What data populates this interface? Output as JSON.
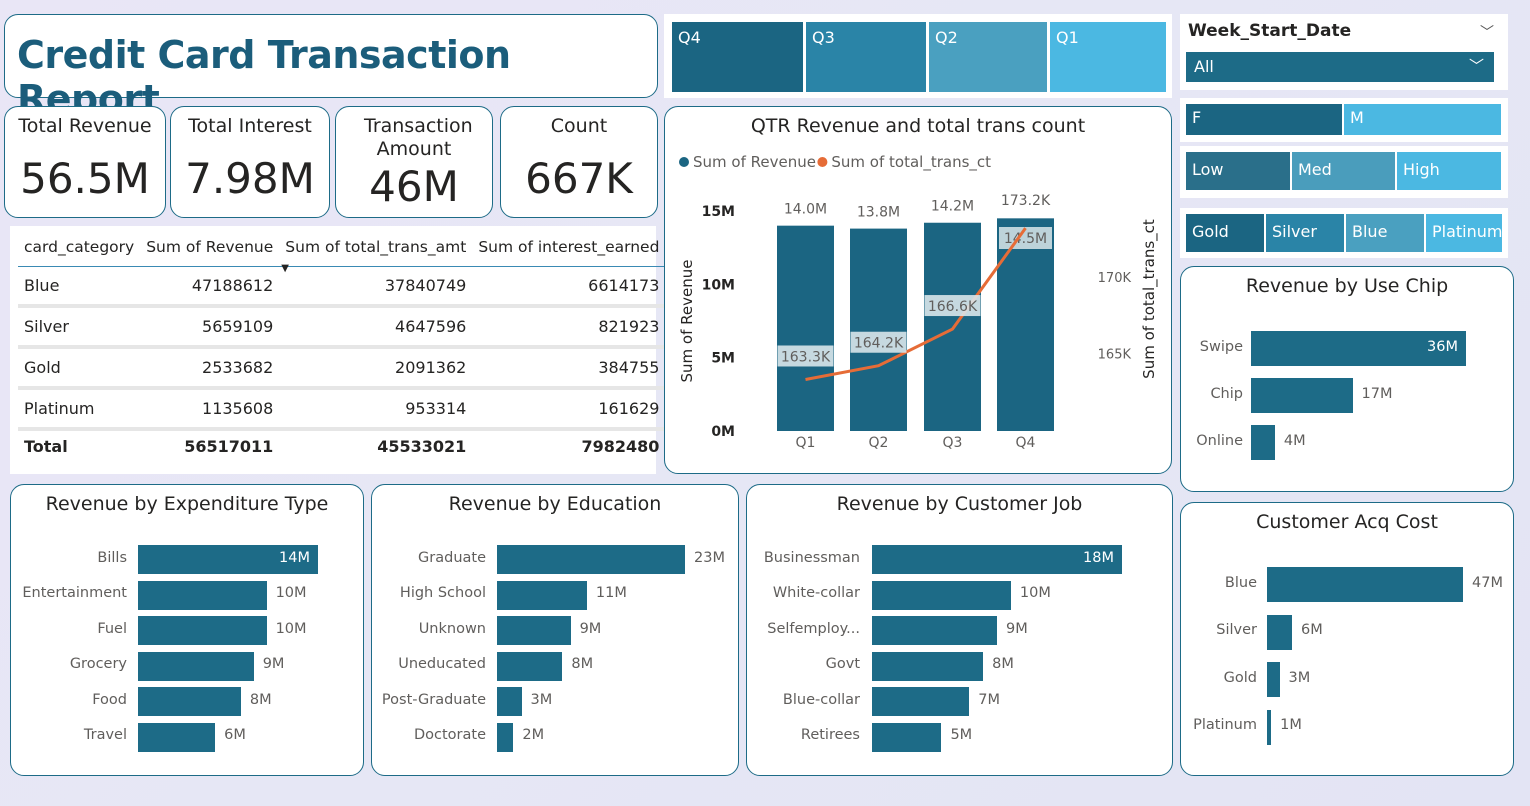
{
  "title": "Credit Card Transaction Report",
  "kpis": [
    {
      "label": "Total Revenue",
      "value": "56.5M"
    },
    {
      "label": "Total Interest",
      "value": "7.98M"
    },
    {
      "label": "Transaction Amount",
      "value": "46M"
    },
    {
      "label": "Count",
      "value": "667K"
    }
  ],
  "table": {
    "headers": [
      "card_category",
      "Sum of Revenue",
      "Sum of total_trans_amt",
      "Sum of interest_earned"
    ],
    "rows": [
      [
        "Blue",
        "47188612",
        "37840749",
        "6614173"
      ],
      [
        "Silver",
        "5659109",
        "4647596",
        "821923"
      ],
      [
        "Gold",
        "2533682",
        "2091362",
        "384755"
      ],
      [
        "Platinum",
        "1135608",
        "953314",
        "161629"
      ]
    ],
    "total": [
      "Total",
      "56517011",
      "45533021",
      "7982480"
    ]
  },
  "quarter_slicer": {
    "items": [
      {
        "label": "Q4",
        "color": "#1b6582"
      },
      {
        "label": "Q3",
        "color": "#2a84a7"
      },
      {
        "label": "Q2",
        "color": "#4aa0c0"
      },
      {
        "label": "Q1",
        "color": "#4bb8e2"
      }
    ]
  },
  "week_slicer": {
    "label": "Week_Start_Date",
    "value": "All"
  },
  "gender_slicer": {
    "items": [
      {
        "label": "F",
        "color": "#1b6582"
      },
      {
        "label": "M",
        "color": "#4bb8e2"
      }
    ]
  },
  "income_slicer": {
    "items": [
      {
        "label": "Low",
        "color": "#2a6f8a"
      },
      {
        "label": "Med",
        "color": "#4a9dbc"
      },
      {
        "label": "High",
        "color": "#4bb8e2"
      }
    ]
  },
  "card_slicer": {
    "items": [
      {
        "label": "Gold",
        "color": "#1b6582"
      },
      {
        "label": "Silver",
        "color": "#2a84a7"
      },
      {
        "label": "Blue",
        "color": "#4aa0c0"
      },
      {
        "label": "Platinum",
        "color": "#4bb8e2"
      }
    ]
  },
  "chart_data": [
    {
      "type": "bar+line",
      "title": "QTR Revenue and total trans count",
      "legend": [
        {
          "name": "Sum of Revenue",
          "color": "#1b6582"
        },
        {
          "name": "Sum of total_trans_ct",
          "color": "#e66c37"
        }
      ],
      "categories": [
        "Q1",
        "Q2",
        "Q3",
        "Q4"
      ],
      "bar_values": [
        14.0,
        13.8,
        14.2,
        14.5
      ],
      "bar_labels": [
        "14.0M",
        "13.8M",
        "14.2M",
        "14.5M"
      ],
      "line_values": [
        163.3,
        164.2,
        166.6,
        173.2
      ],
      "line_labels": [
        "163.3K",
        "164.2K",
        "166.6K",
        "173.2K"
      ],
      "ylabel": "Sum of Revenue",
      "y2label": "Sum of total_trans_ct",
      "ylim": [
        0,
        15
      ],
      "y_ticks": [
        "0M",
        "5M",
        "10M",
        "15M"
      ],
      "y2_ticks": [
        "165K",
        "170K"
      ]
    },
    {
      "type": "bar",
      "title": "Revenue by Use Chip",
      "categories": [
        "Swipe",
        "Chip",
        "Online"
      ],
      "values": [
        36,
        17,
        4
      ],
      "labels": [
        "36M",
        "17M",
        "4M"
      ]
    },
    {
      "type": "bar",
      "title": "Revenue by Expenditure Type",
      "categories": [
        "Bills",
        "Entertainment",
        "Fuel",
        "Grocery",
        "Food",
        "Travel"
      ],
      "values": [
        14,
        10,
        10,
        9,
        8,
        6
      ],
      "labels": [
        "14M",
        "10M",
        "10M",
        "9M",
        "8M",
        "6M"
      ]
    },
    {
      "type": "bar",
      "title": "Revenue by Education",
      "categories": [
        "Graduate",
        "High School",
        "Unknown",
        "Uneducated",
        "Post-Graduate",
        "Doctorate"
      ],
      "values": [
        23,
        11,
        9,
        8,
        3,
        2
      ],
      "labels": [
        "23M",
        "11M",
        "9M",
        "8M",
        "3M",
        "2M"
      ]
    },
    {
      "type": "bar",
      "title": "Revenue by Customer Job",
      "categories": [
        "Businessman",
        "White-collar",
        "Selfemploy...",
        "Govt",
        "Blue-collar",
        "Retirees"
      ],
      "values": [
        18,
        10,
        9,
        8,
        7,
        5
      ],
      "labels": [
        "18M",
        "10M",
        "9M",
        "8M",
        "7M",
        "5M"
      ]
    },
    {
      "type": "bar",
      "title": "Customer Acq Cost",
      "categories": [
        "Blue",
        "Silver",
        "Gold",
        "Platinum"
      ],
      "values": [
        47,
        6,
        3,
        1
      ],
      "labels": [
        "47M",
        "6M",
        "3M",
        "1M"
      ]
    }
  ]
}
